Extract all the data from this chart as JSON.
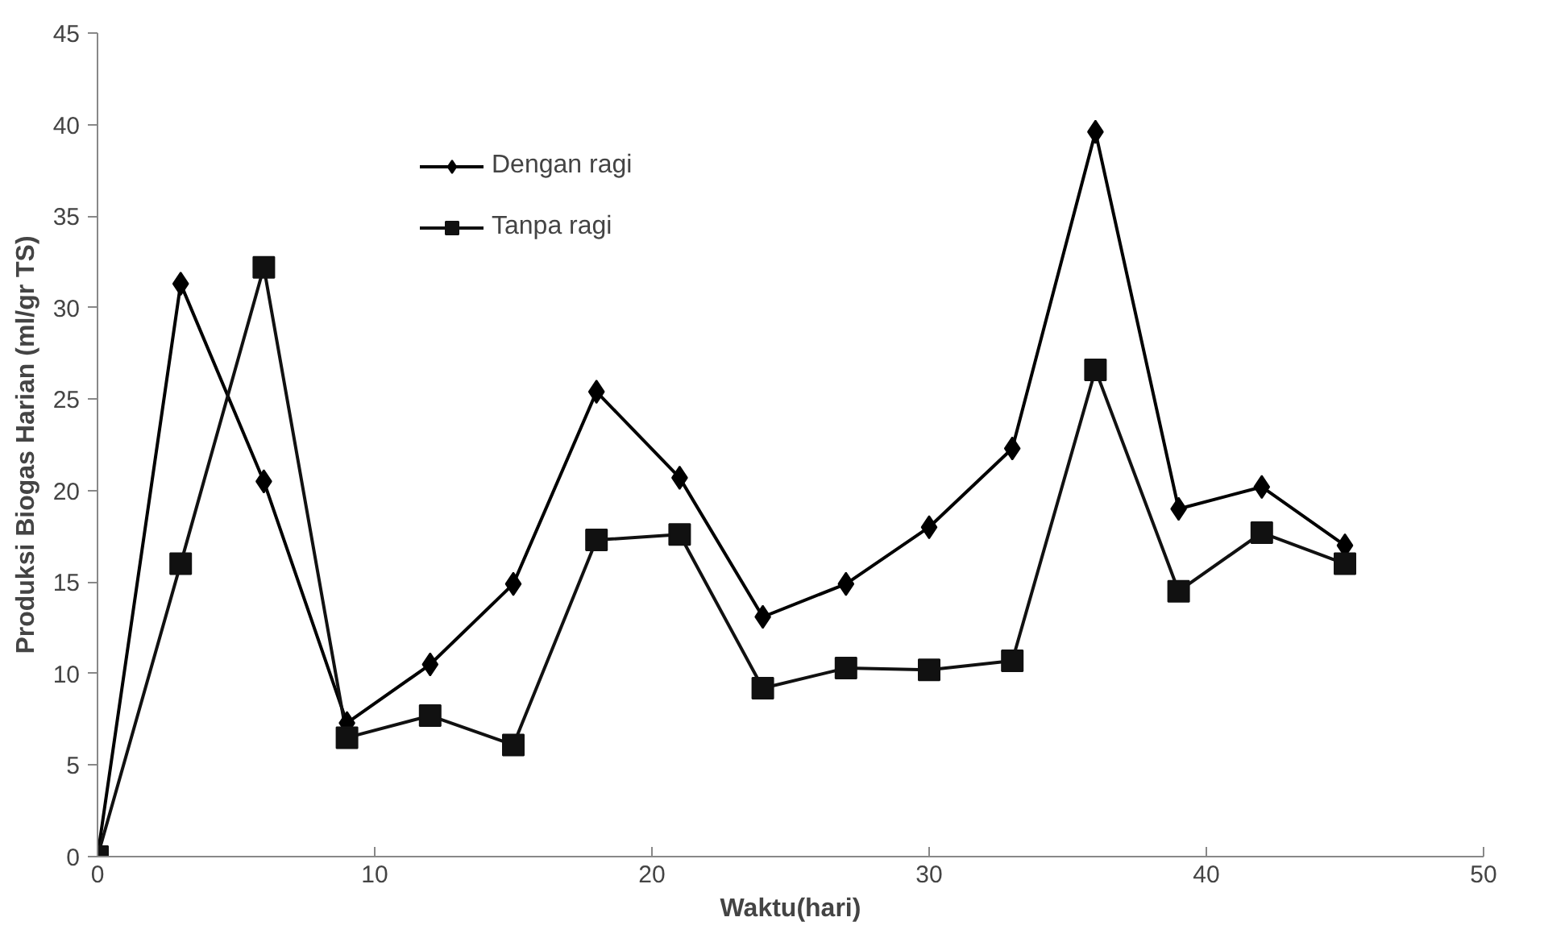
{
  "chart_data": {
    "type": "line",
    "xlabel": "Waktu(hari)",
    "ylabel": "Produksi Biogas Harian (ml/gr TS)",
    "x": [
      0,
      3,
      6,
      9,
      12,
      15,
      18,
      21,
      24,
      27,
      30,
      33,
      36,
      39,
      42,
      45
    ],
    "series": [
      {
        "name": "Dengan ragi",
        "color": "#000000",
        "marker": "diamond",
        "values": [
          0,
          31.3,
          20.5,
          7.3,
          10.5,
          14.9,
          25.4,
          20.7,
          13.1,
          14.9,
          18.0,
          22.3,
          39.6,
          19.0,
          20.2,
          17.0
        ]
      },
      {
        "name": "Tanpa ragi",
        "color": "#111111",
        "marker": "square",
        "values": [
          0,
          16.0,
          32.2,
          6.5,
          7.7,
          6.1,
          17.3,
          17.6,
          9.2,
          10.3,
          10.2,
          10.7,
          26.6,
          14.5,
          17.7,
          16.0
        ]
      }
    ],
    "xlim": [
      0,
      50
    ],
    "xticks": [
      0,
      10,
      20,
      30,
      40,
      50
    ],
    "ylim": [
      0,
      45
    ],
    "yticks": [
      0,
      5,
      10,
      15,
      20,
      25,
      30,
      35,
      40,
      45
    ],
    "grid": false,
    "legend": "top left",
    "line_style": "solid"
  }
}
